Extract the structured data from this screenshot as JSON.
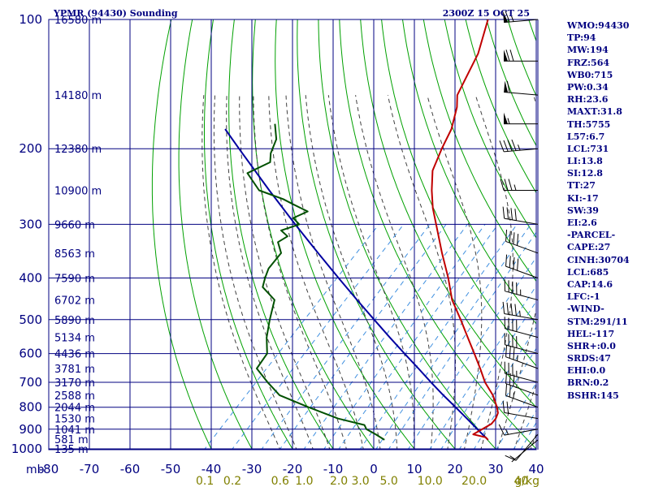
{
  "header": {
    "station": "YPMR (94430) Sounding",
    "time": "2300Z 15 OCT 25"
  },
  "indices": [
    "WMO:94430",
    "TP:94",
    "MW:194",
    "FRZ:564",
    "WB0:715",
    "PW:0.34",
    "RH:23.6",
    "MAXT:31.8",
    "TH:5755",
    "L57:6.7",
    "LCL:731",
    "LI:13.8",
    "SI:12.8",
    "TT:27",
    "KI:-17",
    "SW:39",
    "EI:2.6",
    "-PARCEL-",
    "CAPE:27",
    "CINH:30704",
    "LCL:685",
    "CAP:14.6",
    "LFC:-1",
    "-WIND-",
    "STM:291/11",
    "HEL:-117",
    "SHR+:0.0",
    "SRDS:47",
    "EHI:0.0",
    "BRN:0.2",
    "BSHR:145"
  ],
  "colors": {
    "frame": "#000080",
    "temperature": "#c00000",
    "dewpoint": "#005000",
    "parcel": "#0000a0",
    "dry_adiabat": "#00a000",
    "moist_adiabat": "#404040",
    "mixing_ratio": "#4090e0",
    "mixing_label": "#808000"
  },
  "chart_data": {
    "type": "line",
    "title": "YPMR (94430) Sounding",
    "x_axis_unit": "mb",
    "y_axis": "pressure (mb), log scale",
    "pressure_ticks": [
      100,
      200,
      300,
      400,
      500,
      600,
      700,
      800,
      900,
      1000
    ],
    "temperature_ticks": [
      -80,
      -70,
      -60,
      -50,
      -40,
      -30,
      -20,
      -10,
      0,
      10,
      20,
      30,
      40
    ],
    "xlim": [
      -80,
      40
    ],
    "ylim": [
      1000,
      100
    ],
    "mixing_ratio_unit": "g/kg",
    "mixing_ratio_labels": [
      "0.1",
      "0.2",
      "0.6",
      "1.0",
      "2.0",
      "3.0",
      "5.0",
      "10.0",
      "20.0",
      "40"
    ],
    "height_labels": [
      {
        "p": 1000,
        "label": "135 m"
      },
      {
        "p": 950,
        "label": "581 m"
      },
      {
        "p": 900,
        "label": "1041 m"
      },
      {
        "p": 850,
        "label": "1530 m"
      },
      {
        "p": 800,
        "label": "2044 m"
      },
      {
        "p": 750,
        "label": "2588 m"
      },
      {
        "p": 700,
        "label": "3170 m"
      },
      {
        "p": 650,
        "label": "3781 m"
      },
      {
        "p": 600,
        "label": "4436 m"
      },
      {
        "p": 550,
        "label": "5134 m"
      },
      {
        "p": 500,
        "label": "5890 m"
      },
      {
        "p": 450,
        "label": "6702 m"
      },
      {
        "p": 400,
        "label": "7590 m"
      },
      {
        "p": 350,
        "label": "8563 m"
      },
      {
        "p": 300,
        "label": "9660 m"
      },
      {
        "p": 250,
        "label": "10900 m"
      },
      {
        "p": 200,
        "label": "12380 m"
      },
      {
        "p": 150,
        "label": "14180 m"
      },
      {
        "p": 100,
        "label": "16580 m"
      }
    ],
    "temperature": [
      [
        953,
        26
      ],
      [
        940,
        24.8
      ],
      [
        925,
        21
      ],
      [
        900,
        22
      ],
      [
        875,
        23
      ],
      [
        850,
        22.8
      ],
      [
        825,
        22
      ],
      [
        800,
        20.4
      ],
      [
        750,
        16.5
      ],
      [
        700,
        11.5
      ],
      [
        650,
        7
      ],
      [
        600,
        2
      ],
      [
        550,
        -3.5
      ],
      [
        500,
        -9.5
      ],
      [
        450,
        -16.3
      ],
      [
        400,
        -22.5
      ],
      [
        350,
        -30
      ],
      [
        300,
        -38.3
      ],
      [
        275,
        -43
      ],
      [
        250,
        -47.5
      ],
      [
        225,
        -52
      ],
      [
        200,
        -55
      ],
      [
        180,
        -57.3
      ],
      [
        160,
        -61.2
      ],
      [
        150,
        -64
      ],
      [
        120,
        -68.8
      ],
      [
        100,
        -74.5
      ]
    ],
    "dewpoint": [
      [
        953,
        0.5
      ],
      [
        925,
        -3
      ],
      [
        900,
        -6.5
      ],
      [
        880,
        -8
      ],
      [
        850,
        -16
      ],
      [
        800,
        -26
      ],
      [
        750,
        -36
      ],
      [
        700,
        -42
      ],
      [
        650,
        -48
      ],
      [
        600,
        -49
      ],
      [
        550,
        -53
      ],
      [
        500,
        -56.5
      ],
      [
        450,
        -60
      ],
      [
        420,
        -66
      ],
      [
        400,
        -67.6
      ],
      [
        380,
        -69
      ],
      [
        350,
        -69.6
      ],
      [
        330,
        -73
      ],
      [
        320,
        -72
      ],
      [
        310,
        -75
      ],
      [
        300,
        -72
      ],
      [
        290,
        -75
      ],
      [
        280,
        -73
      ],
      [
        270,
        -78
      ],
      [
        262,
        -82
      ],
      [
        250,
        -90
      ],
      [
        228,
        -97
      ],
      [
        215,
        -94
      ],
      [
        205,
        -96
      ],
      [
        190,
        -98
      ],
      [
        175,
        -102
      ]
    ],
    "parcel": [
      [
        953,
        26
      ],
      [
        900,
        20.8
      ],
      [
        850,
        15.7
      ],
      [
        800,
        10.2
      ],
      [
        750,
        4.3
      ],
      [
        700,
        -1.8
      ],
      [
        650,
        -8.2
      ],
      [
        600,
        -15.2
      ],
      [
        550,
        -22.7
      ],
      [
        500,
        -30.8
      ],
      [
        450,
        -39.7
      ],
      [
        400,
        -49.5
      ],
      [
        350,
        -60.5
      ],
      [
        300,
        -73
      ],
      [
        250,
        -87.5
      ],
      [
        200,
        -104.9
      ],
      [
        180,
        -113
      ]
    ],
    "wind_barbs": [
      {
        "p": 953,
        "dir": 230,
        "spd": 5
      },
      {
        "p": 925,
        "dir": 220,
        "spd": 10
      },
      {
        "p": 900,
        "dir": 260,
        "spd": 15
      },
      {
        "p": 850,
        "dir": 280,
        "spd": 20
      },
      {
        "p": 800,
        "dir": 290,
        "spd": 25
      },
      {
        "p": 750,
        "dir": 290,
        "spd": 30
      },
      {
        "p": 700,
        "dir": 285,
        "spd": 35
      },
      {
        "p": 650,
        "dir": 290,
        "spd": 35
      },
      {
        "p": 600,
        "dir": 285,
        "spd": 40
      },
      {
        "p": 550,
        "dir": 285,
        "spd": 40
      },
      {
        "p": 500,
        "dir": 280,
        "spd": 45
      },
      {
        "p": 450,
        "dir": 285,
        "spd": 45
      },
      {
        "p": 400,
        "dir": 290,
        "spd": 40
      },
      {
        "p": 350,
        "dir": 290,
        "spd": 40
      },
      {
        "p": 300,
        "dir": 280,
        "spd": 40
      },
      {
        "p": 250,
        "dir": 270,
        "spd": 35
      },
      {
        "p": 200,
        "dir": 265,
        "spd": 45
      },
      {
        "p": 175,
        "dir": 270,
        "spd": 55
      },
      {
        "p": 150,
        "dir": 275,
        "spd": 60
      },
      {
        "p": 125,
        "dir": 270,
        "spd": 70
      },
      {
        "p": 100,
        "dir": 265,
        "spd": 65
      }
    ]
  }
}
